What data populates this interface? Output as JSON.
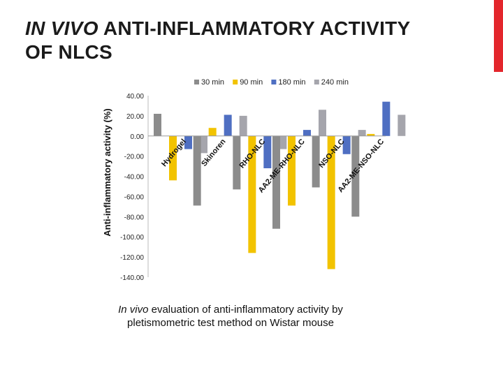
{
  "slide": {
    "title_italic": "IN VIVO",
    "title_rest": " ANTI-INFLAMMATORY ACTIVITY",
    "title_line2": "OF NLCS",
    "caption_italic": "In vivo",
    "caption_rest": " evaluation of anti-inflammatory activity by pletismometric test method on Wistar mouse"
  },
  "colors": {
    "accent": "#e3262c",
    "series": [
      "#8c8c8c",
      "#f2c300",
      "#4f6fc2",
      "#a5a5ac"
    ]
  },
  "chart_data": {
    "type": "bar",
    "title": "",
    "xlabel": "",
    "ylabel": "Anti-inflammatory activity (%)",
    "ylim": [
      -140,
      40
    ],
    "yticks": [
      40,
      20,
      0,
      -20,
      -40,
      -60,
      -80,
      -100,
      -120,
      -140
    ],
    "ytick_labels": [
      "40.00",
      "20.00",
      "0.00",
      "-20.00",
      "-40.00",
      "-60.00",
      "-80.00",
      "-100.00",
      "-120.00",
      "-140.00"
    ],
    "grid": false,
    "legend_position": "top",
    "categories": [
      "Hydrogel",
      "Skinoren",
      "RHO-NLC",
      "AA2-ME-RHO-NLC",
      "NSO-NLC",
      "AA2-ME-NSO-NLC"
    ],
    "series": [
      {
        "name": "30 min",
        "values": [
          22,
          -69,
          -53,
          -92,
          -51,
          -80
        ]
      },
      {
        "name": "90 min",
        "values": [
          -44,
          8,
          -116,
          -69,
          -132,
          2
        ]
      },
      {
        "name": "180 min",
        "values": [
          -13,
          21,
          -32,
          6,
          -18,
          34
        ]
      },
      {
        "name": "240 min",
        "values": [
          -17,
          20,
          -13,
          26,
          6,
          21
        ]
      }
    ]
  }
}
